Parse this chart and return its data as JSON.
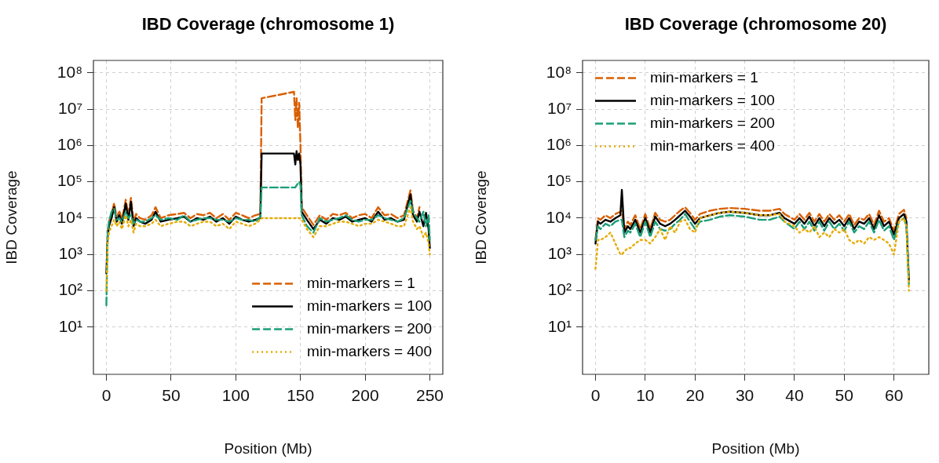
{
  "chart_data": [
    {
      "type": "line",
      "title": "IBD Coverage (chromosome 1)",
      "xlabel": "Position (Mb)",
      "ylabel": "IBD Coverage",
      "log": "y",
      "grid": true,
      "legend": "bottom right",
      "marker": "none",
      "xlim": [
        -10,
        260
      ],
      "xticks": [
        0,
        50,
        100,
        150,
        200,
        250
      ],
      "ylim": [
        0.5,
        220000000
      ],
      "yticks": [
        {
          "value": 10,
          "label": "10¹"
        },
        {
          "value": 100,
          "label": "10²"
        },
        {
          "value": 1000,
          "label": "10³"
        },
        {
          "value": 10000,
          "label": "10⁴"
        },
        {
          "value": 100000,
          "label": "10⁵"
        },
        {
          "value": 1000000,
          "label": "10⁶"
        },
        {
          "value": 10000000,
          "label": "10⁷"
        },
        {
          "value": 100000000,
          "label": "10⁸"
        }
      ],
      "series": [
        {
          "name": "min-markers = 1",
          "color": "#d95f02",
          "line_style": "dashed",
          "x": [
            1,
            2,
            4,
            6,
            8,
            10,
            12,
            15,
            17,
            19,
            21,
            23,
            26,
            30,
            35,
            38,
            42,
            48,
            55,
            60,
            65,
            70,
            75,
            80,
            85,
            90,
            95,
            100,
            105,
            110,
            115,
            119,
            120,
            145,
            146,
            147,
            148,
            149,
            150,
            151,
            155,
            160,
            165,
            170,
            175,
            180,
            185,
            190,
            195,
            200,
            205,
            210,
            215,
            220,
            225,
            230,
            235,
            237,
            240,
            242
          ],
          "values": [
            4000,
            8000,
            13000,
            26000,
            10000,
            16000,
            9000,
            32000,
            12000,
            36000,
            8000,
            13000,
            10000,
            9000,
            12000,
            20000,
            10000,
            12000,
            13000,
            14000,
            10000,
            13000,
            12000,
            14000,
            10000,
            13000,
            9000,
            14000,
            12000,
            10000,
            12000,
            13000,
            20000000,
            30000000,
            5000000,
            20000000,
            3000000,
            15000000,
            1000000,
            20000,
            12000,
            6500,
            12000,
            9000,
            13000,
            12000,
            14000,
            10000,
            12000,
            13000,
            10000,
            20000,
            12000,
            13000,
            10000,
            12000,
            58000,
            16000,
            10000,
            20000
          ]
        },
        {
          "name": "min-markers = 100",
          "color": "#000000",
          "line_style": "solid",
          "x": [
            0,
            1,
            2,
            4,
            6,
            8,
            10,
            12,
            15,
            17,
            19,
            21,
            23,
            26,
            30,
            35,
            38,
            42,
            48,
            55,
            60,
            65,
            70,
            75,
            80,
            85,
            90,
            95,
            100,
            105,
            110,
            115,
            119,
            120,
            145,
            146,
            147,
            148,
            149,
            150,
            151,
            155,
            160,
            165,
            170,
            175,
            180,
            185,
            190,
            195,
            200,
            205,
            210,
            215,
            220,
            225,
            230,
            235,
            237,
            240,
            242,
            245,
            247,
            249,
            250
          ],
          "values": [
            300,
            3000,
            6000,
            10000,
            20000,
            8000,
            12000,
            7000,
            25000,
            9000,
            28000,
            6000,
            10000,
            8000,
            7000,
            9000,
            15000,
            8000,
            9000,
            10000,
            11000,
            8000,
            10000,
            9000,
            11000,
            8000,
            10000,
            7000,
            11000,
            9000,
            8000,
            9000,
            10000,
            600000,
            600000,
            300000,
            700000,
            400000,
            600000,
            300000,
            15000,
            9000,
            5000,
            9000,
            7000,
            10000,
            9000,
            11000,
            8000,
            9000,
            10000,
            8000,
            15000,
            9000,
            10000,
            8000,
            9000,
            45000,
            12000,
            8000,
            15000,
            6000,
            14000,
            5000,
            1500
          ]
        },
        {
          "name": "min-markers = 200",
          "color": "#1b9e77",
          "line_style": "dashed",
          "x": [
            0,
            1,
            2,
            4,
            6,
            8,
            10,
            12,
            15,
            17,
            19,
            21,
            23,
            26,
            30,
            35,
            38,
            42,
            48,
            55,
            60,
            65,
            70,
            75,
            80,
            85,
            90,
            95,
            100,
            105,
            110,
            115,
            119,
            120,
            145,
            146,
            147,
            148,
            149,
            150,
            151,
            155,
            160,
            165,
            170,
            175,
            180,
            185,
            190,
            195,
            200,
            205,
            210,
            215,
            220,
            225,
            230,
            235,
            237,
            240,
            242,
            245,
            247,
            249,
            250
          ],
          "values": [
            40,
            4000,
            8000,
            15000,
            18000,
            9000,
            10000,
            8000,
            15000,
            10000,
            12000,
            7000,
            9000,
            8000,
            8000,
            10000,
            12000,
            9000,
            10000,
            9000,
            12000,
            8000,
            9000,
            10000,
            10000,
            9000,
            9000,
            8000,
            10000,
            9000,
            9000,
            8000,
            11000,
            70000,
            70000,
            70000,
            80000,
            90000,
            100000,
            80000,
            12000,
            6000,
            4000,
            10000,
            8000,
            9000,
            10000,
            12000,
            9000,
            8000,
            9000,
            9000,
            12000,
            10000,
            9000,
            8000,
            10000,
            30000,
            15000,
            10000,
            8000,
            15000,
            6000,
            12000,
            2500
          ]
        },
        {
          "name": "min-markers = 400",
          "color": "#e6ab02",
          "line_style": "dotted",
          "x": [
            0,
            1,
            2,
            4,
            6,
            8,
            10,
            12,
            15,
            17,
            19,
            21,
            23,
            26,
            30,
            35,
            38,
            42,
            48,
            55,
            60,
            65,
            70,
            75,
            80,
            85,
            90,
            95,
            100,
            105,
            110,
            115,
            119,
            120,
            145,
            146,
            147,
            148,
            149,
            150,
            151,
            155,
            160,
            165,
            170,
            175,
            180,
            185,
            190,
            195,
            200,
            205,
            210,
            215,
            220,
            225,
            230,
            235,
            237,
            240,
            242,
            245,
            247,
            249,
            250
          ],
          "values": [
            100,
            2000,
            4000,
            6000,
            9000,
            6000,
            8000,
            5000,
            12000,
            6000,
            9000,
            4000,
            7000,
            6000,
            6000,
            7000,
            9000,
            6000,
            7000,
            8000,
            8000,
            6000,
            7000,
            8000,
            8000,
            6000,
            7000,
            5000,
            8000,
            7000,
            6000,
            7000,
            9000,
            10000,
            10000,
            10000,
            10000,
            10000,
            10000,
            10000,
            9000,
            5000,
            3000,
            6000,
            6000,
            7000,
            8000,
            8000,
            7000,
            6000,
            7000,
            7000,
            9000,
            8000,
            7000,
            6000,
            6000,
            20000,
            8000,
            5000,
            6000,
            3000,
            4000,
            2000,
            1000
          ]
        }
      ]
    },
    {
      "type": "line",
      "title": "IBD Coverage (chromosome 20)",
      "xlabel": "Position (Mb)",
      "ylabel": "IBD Coverage",
      "log": "y",
      "grid": true,
      "legend": "top left",
      "marker": "none",
      "xlim": [
        -2.6,
        67
      ],
      "xticks": [
        0,
        10,
        20,
        30,
        40,
        50,
        60
      ],
      "ylim": [
        0.5,
        220000000
      ],
      "yticks": [
        {
          "value": 10,
          "label": "10¹"
        },
        {
          "value": 100,
          "label": "10²"
        },
        {
          "value": 1000,
          "label": "10³"
        },
        {
          "value": 10000,
          "label": "10⁴"
        },
        {
          "value": 100000,
          "label": "10⁵"
        },
        {
          "value": 1000000,
          "label": "10⁶"
        },
        {
          "value": 10000000,
          "label": "10⁷"
        },
        {
          "value": 100000000,
          "label": "10⁸"
        }
      ],
      "series": [
        {
          "name": "min-markers = 1",
          "color": "#d95f02",
          "line_style": "dashed",
          "x": [
            0,
            0.5,
            1,
            2,
            3,
            4,
            5,
            5.3,
            5.8,
            6.5,
            7,
            8,
            9,
            10,
            11,
            12,
            13,
            14,
            15,
            16,
            17,
            18,
            19,
            20,
            21,
            23,
            25,
            27,
            30,
            33,
            35,
            37,
            38,
            40,
            41,
            42,
            43,
            44,
            45,
            46,
            47,
            48,
            49,
            50,
            51,
            52,
            53,
            54,
            55,
            56,
            57,
            58,
            59,
            60,
            61,
            62,
            62.5
          ],
          "values": [
            2600,
            10000,
            9000,
            12000,
            10000,
            13000,
            15000,
            16000,
            5000,
            8000,
            6500,
            12000,
            5000,
            13000,
            5000,
            14000,
            9000,
            8000,
            9000,
            12000,
            16000,
            20000,
            14000,
            9000,
            13000,
            16000,
            18000,
            19000,
            18000,
            16000,
            16000,
            18000,
            13000,
            9000,
            13000,
            9000,
            14000,
            8000,
            13000,
            8000,
            13000,
            9000,
            12000,
            8000,
            13000,
            6500,
            10000,
            9000,
            13000,
            6500,
            16000,
            8000,
            10000,
            4500,
            13000,
            17000,
            10000
          ]
        },
        {
          "name": "min-markers = 100",
          "color": "#000000",
          "line_style": "solid",
          "x": [
            0,
            0.5,
            1,
            2,
            3,
            4,
            5,
            5.3,
            5.8,
            6.5,
            7,
            8,
            9,
            10,
            11,
            12,
            13,
            14,
            15,
            16,
            17,
            18,
            19,
            20,
            21,
            23,
            25,
            27,
            30,
            33,
            35,
            37,
            38,
            40,
            41,
            42,
            43,
            44,
            45,
            46,
            47,
            48,
            49,
            50,
            51,
            52,
            53,
            54,
            55,
            56,
            57,
            58,
            59,
            60,
            61,
            62,
            62.5,
            63
          ],
          "values": [
            2000,
            8000,
            7000,
            9000,
            8000,
            10000,
            12000,
            60000,
            4000,
            6000,
            5000,
            9000,
            4000,
            10000,
            4000,
            11000,
            7000,
            6000,
            7000,
            9000,
            12000,
            16000,
            11000,
            7000,
            10000,
            12000,
            14000,
            15000,
            14000,
            12000,
            12000,
            14000,
            10000,
            7000,
            10000,
            7000,
            11000,
            6000,
            10000,
            6000,
            10000,
            7000,
            9000,
            6000,
            10000,
            5000,
            8000,
            7000,
            10000,
            5000,
            12000,
            6000,
            8000,
            3500,
            10000,
            13000,
            8000,
            200
          ]
        },
        {
          "name": "min-markers = 200",
          "color": "#1b9e77",
          "line_style": "dashed",
          "x": [
            0,
            0.5,
            1,
            2,
            3,
            4,
            5,
            5.3,
            5.8,
            6.5,
            7,
            8,
            9,
            10,
            11,
            12,
            13,
            14,
            15,
            16,
            17,
            18,
            19,
            20,
            21,
            23,
            25,
            27,
            30,
            33,
            35,
            37,
            38,
            40,
            41,
            42,
            43,
            44,
            45,
            46,
            47,
            48,
            49,
            50,
            51,
            52,
            53,
            54,
            55,
            56,
            57,
            58,
            59,
            60,
            61,
            62,
            62.5,
            63
          ],
          "values": [
            2500,
            6000,
            5000,
            7000,
            6000,
            8000,
            9000,
            9000,
            3000,
            4500,
            4000,
            7000,
            3000,
            8000,
            3000,
            8000,
            5000,
            4500,
            5000,
            7000,
            9000,
            13000,
            8000,
            5000,
            8000,
            9000,
            11000,
            12000,
            11000,
            9000,
            9000,
            11000,
            8000,
            5000,
            8000,
            5000,
            8000,
            4500,
            8000,
            4500,
            8000,
            5000,
            7000,
            4500,
            8000,
            4000,
            6000,
            5000,
            8000,
            4000,
            9000,
            4500,
            6000,
            2500,
            8000,
            10000,
            6000,
            150
          ]
        },
        {
          "name": "min-markers = 400",
          "color": "#e6ab02",
          "line_style": "dotted",
          "x": [
            0,
            0.5,
            1,
            2,
            3,
            4,
            5,
            5.3,
            5.8,
            6.5,
            7,
            8,
            9,
            10,
            11,
            12,
            13,
            14,
            15,
            16,
            17,
            18,
            19,
            20,
            21,
            23,
            25,
            27,
            30,
            33,
            35,
            37,
            38,
            40,
            41,
            42,
            43,
            44,
            45,
            46,
            47,
            48,
            49,
            50,
            51,
            52,
            53,
            54,
            55,
            56,
            57,
            58,
            59,
            60,
            61,
            62,
            62.5,
            63
          ],
          "values": [
            400,
            2500,
            2500,
            3000,
            4000,
            2000,
            1000,
            1000,
            1200,
            1500,
            1500,
            2000,
            2500,
            2500,
            2000,
            3000,
            5000,
            2500,
            6000,
            4000,
            8000,
            9000,
            5000,
            4000,
            10000,
            12000,
            14000,
            15000,
            14000,
            12000,
            12000,
            13000,
            8000,
            6000,
            4000,
            5000,
            4000,
            6000,
            3000,
            4000,
            3000,
            5000,
            4000,
            5000,
            2500,
            2000,
            2500,
            2000,
            3000,
            2500,
            3000,
            2500,
            2000,
            1000,
            8000,
            10000,
            6000,
            100
          ]
        }
      ]
    }
  ]
}
